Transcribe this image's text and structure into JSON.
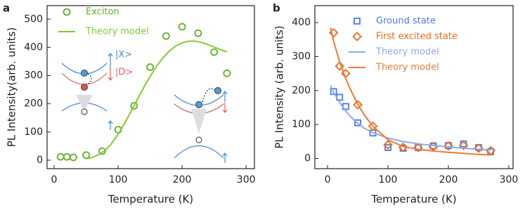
{
  "chart_data": [
    {
      "type": "scatter",
      "panel_label": "a",
      "xlabel": "Temperature (K)",
      "ylabel": "PL Intensity(arb. units)",
      "xlim": [
        -11,
        313
      ],
      "ylim": [
        -30,
        548
      ],
      "xticks": [
        0,
        100,
        200,
        300
      ],
      "yticks": [
        0,
        100,
        200,
        300,
        400,
        500
      ],
      "annotations": [
        "|X>",
        "|D>"
      ],
      "series": [
        {
          "name": "Exciton",
          "color": "#62ad2a",
          "mode": "markers",
          "marker": "circle",
          "x": [
            10,
            20,
            30,
            50,
            75,
            100,
            125,
            150,
            175,
            200,
            225,
            250,
            270
          ],
          "values": [
            12,
            12,
            10,
            18,
            32,
            108,
            193,
            330,
            440,
            473,
            450,
            383,
            308
          ]
        },
        {
          "name": "Theory model",
          "color": "#7fcc2e",
          "mode": "line",
          "x": [
            50,
            60,
            70,
            80,
            90,
            100,
            110,
            120,
            130,
            140,
            150,
            160,
            170,
            180,
            190,
            200,
            210,
            220,
            230,
            240,
            250,
            260,
            270
          ],
          "values": [
            5,
            10,
            20,
            35,
            60,
            92,
            130,
            172,
            215,
            258,
            297,
            333,
            363,
            387,
            405,
            416,
            422,
            422,
            418,
            410,
            401,
            392,
            384
          ]
        }
      ]
    },
    {
      "type": "scatter",
      "panel_label": "b",
      "xlabel": "Temperature (K)",
      "ylabel": "PL Intensity (arb. units)",
      "xlim": [
        -21,
        307
      ],
      "ylim": [
        -30,
        450
      ],
      "xticks": [
        0,
        100,
        200,
        300
      ],
      "yticks": [
        0,
        100,
        200,
        300,
        400
      ],
      "series": [
        {
          "name": "Ground state",
          "color": "#4a7be0",
          "mode": "markers",
          "marker": "square",
          "x": [
            10,
            20,
            30,
            50,
            75,
            100,
            125,
            150,
            175,
            200,
            225,
            250,
            270
          ],
          "values": [
            197,
            180,
            153,
            105,
            75,
            32,
            30,
            32,
            37,
            38,
            43,
            32,
            20
          ]
        },
        {
          "name": "First excited state",
          "color": "#ea6a1f",
          "mode": "markers",
          "marker": "diamond",
          "x": [
            10,
            20,
            30,
            50,
            75,
            100,
            125,
            150,
            175,
            200,
            225,
            250,
            270
          ],
          "values": [
            370,
            272,
            250,
            158,
            95,
            40,
            33,
            32,
            35,
            37,
            38,
            30,
            23
          ]
        },
        {
          "name": "Theory model",
          "color": "#8ea9ec",
          "mode": "line",
          "x": [
            5,
            10,
            20,
            30,
            40,
            50,
            60,
            75,
            100,
            125,
            150,
            175,
            200,
            225,
            250,
            270
          ],
          "values": [
            215,
            195,
            165,
            140,
            120,
            103,
            90,
            76,
            60,
            50,
            43,
            38,
            34,
            30,
            27,
            25
          ]
        },
        {
          "name": "Theory model",
          "color": "#ee7a35",
          "mode": "line",
          "x": [
            5,
            10,
            20,
            30,
            40,
            50,
            60,
            75,
            100,
            125,
            150,
            175,
            200,
            225,
            250,
            270
          ],
          "values": [
            385,
            345,
            285,
            235,
            195,
            160,
            130,
            95,
            55,
            35,
            27,
            22,
            18,
            15,
            12,
            10
          ]
        }
      ]
    }
  ]
}
